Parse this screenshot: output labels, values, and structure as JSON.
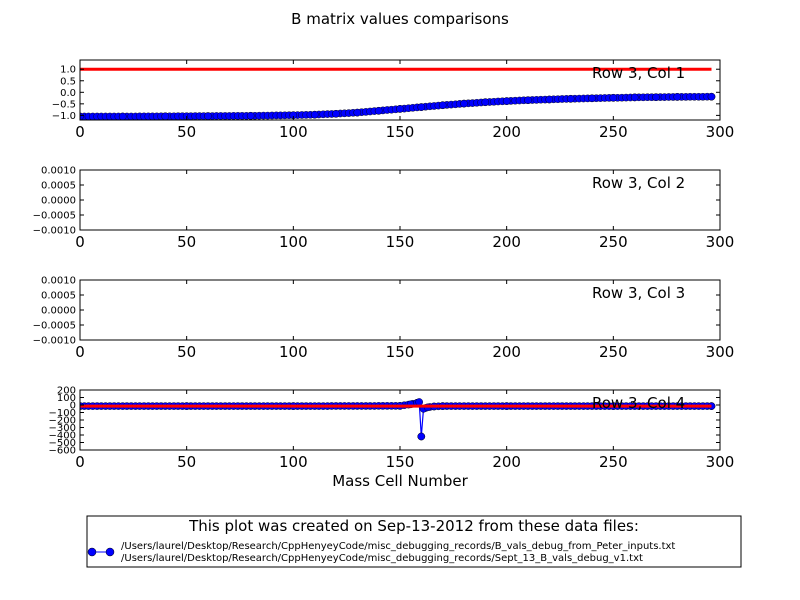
{
  "title": "B matrix values comparisons",
  "xlabel": "Mass Cell Number",
  "legend": {
    "heading": "This plot was created on Sep-13-2012 from these data files:",
    "entries": [
      "/Users/laurel/Desktop/Research/CppHenyeyCode/misc_debugging_records/B_vals_debug_from_Peter_inputs.txt",
      "/Users/laurel/Desktop/Research/CppHenyeyCode/misc_debugging_records/Sept_13_B_vals_debug_v1.txt"
    ]
  },
  "colors": {
    "series_blue": "#0000ff",
    "series_red": "#ff0000"
  },
  "chart_data": [
    {
      "type": "line",
      "annotation": "Row 3, Col 1",
      "xlim": [
        0,
        300
      ],
      "ylim": [
        -1.2,
        1.4
      ],
      "x_ticks": [
        0,
        50,
        100,
        150,
        200,
        250,
        300
      ],
      "y_ticks": [
        -1.0,
        -0.5,
        0.0,
        0.5,
        1.0
      ],
      "y_tick_labels": [
        "−1.0",
        "−0.5",
        "0.0",
        "0.5",
        "1.0"
      ],
      "series": [
        {
          "style": "blue-markers",
          "points": [
            [
              0,
              -1.05
            ],
            [
              20,
              -1.05
            ],
            [
              40,
              -1.04
            ],
            [
              60,
              -1.03
            ],
            [
              80,
              -1.02
            ],
            [
              100,
              -0.99
            ],
            [
              110,
              -0.97
            ],
            [
              120,
              -0.93
            ],
            [
              130,
              -0.88
            ],
            [
              140,
              -0.8
            ],
            [
              150,
              -0.72
            ],
            [
              160,
              -0.64
            ],
            [
              170,
              -0.56
            ],
            [
              180,
              -0.49
            ],
            [
              190,
              -0.43
            ],
            [
              200,
              -0.38
            ],
            [
              210,
              -0.34
            ],
            [
              220,
              -0.31
            ],
            [
              230,
              -0.28
            ],
            [
              240,
              -0.26
            ],
            [
              250,
              -0.24
            ],
            [
              260,
              -0.22
            ],
            [
              270,
              -0.21
            ],
            [
              280,
              -0.2
            ],
            [
              296,
              -0.19
            ]
          ]
        },
        {
          "style": "red-line",
          "points": [
            [
              0,
              1.0
            ],
            [
              296,
              1.0
            ]
          ]
        }
      ]
    },
    {
      "type": "line",
      "annotation": "Row 3, Col 2",
      "xlim": [
        0,
        300
      ],
      "ylim": [
        -0.001,
        0.001
      ],
      "x_ticks": [
        0,
        50,
        100,
        150,
        200,
        250,
        300
      ],
      "y_ticks": [
        -0.001,
        -0.0005,
        0.0,
        0.0005,
        0.001
      ],
      "y_tick_labels": [
        "−0.0010",
        "−0.0005",
        "0.0000",
        "0.0005",
        "0.0010"
      ],
      "series": []
    },
    {
      "type": "line",
      "annotation": "Row 3, Col 3",
      "xlim": [
        0,
        300
      ],
      "ylim": [
        -0.001,
        0.001
      ],
      "x_ticks": [
        0,
        50,
        100,
        150,
        200,
        250,
        300
      ],
      "y_ticks": [
        -0.001,
        -0.0005,
        0.0,
        0.0005,
        0.001
      ],
      "y_tick_labels": [
        "−0.0010",
        "−0.0005",
        "0.0000",
        "0.0005",
        "0.0010"
      ],
      "series": []
    },
    {
      "type": "line",
      "annotation": "Row 3, Col 4",
      "xlim": [
        0,
        300
      ],
      "ylim": [
        -600,
        200
      ],
      "x_ticks": [
        0,
        50,
        100,
        150,
        200,
        250,
        300
      ],
      "y_ticks": [
        -600,
        -500,
        -400,
        -300,
        -200,
        -100,
        0,
        100,
        200
      ],
      "y_tick_labels": [
        "−600",
        "−500",
        "−400",
        "−300",
        "−200",
        "−100",
        "0",
        "100",
        "200"
      ],
      "series": [
        {
          "style": "blue-markers",
          "points": [
            [
              0,
              -15
            ],
            [
              50,
              -15
            ],
            [
              100,
              -15
            ],
            [
              150,
              -12
            ],
            [
              155,
              10
            ],
            [
              158,
              30
            ],
            [
              159,
              40
            ],
            [
              160,
              -420
            ],
            [
              161,
              -50
            ],
            [
              163,
              -30
            ],
            [
              166,
              -20
            ],
            [
              170,
              -15
            ],
            [
              200,
              -15
            ],
            [
              250,
              -15
            ],
            [
              296,
              -15
            ]
          ]
        },
        {
          "style": "red-line",
          "points": [
            [
              0,
              -15
            ],
            [
              296,
              -15
            ]
          ]
        }
      ]
    }
  ]
}
